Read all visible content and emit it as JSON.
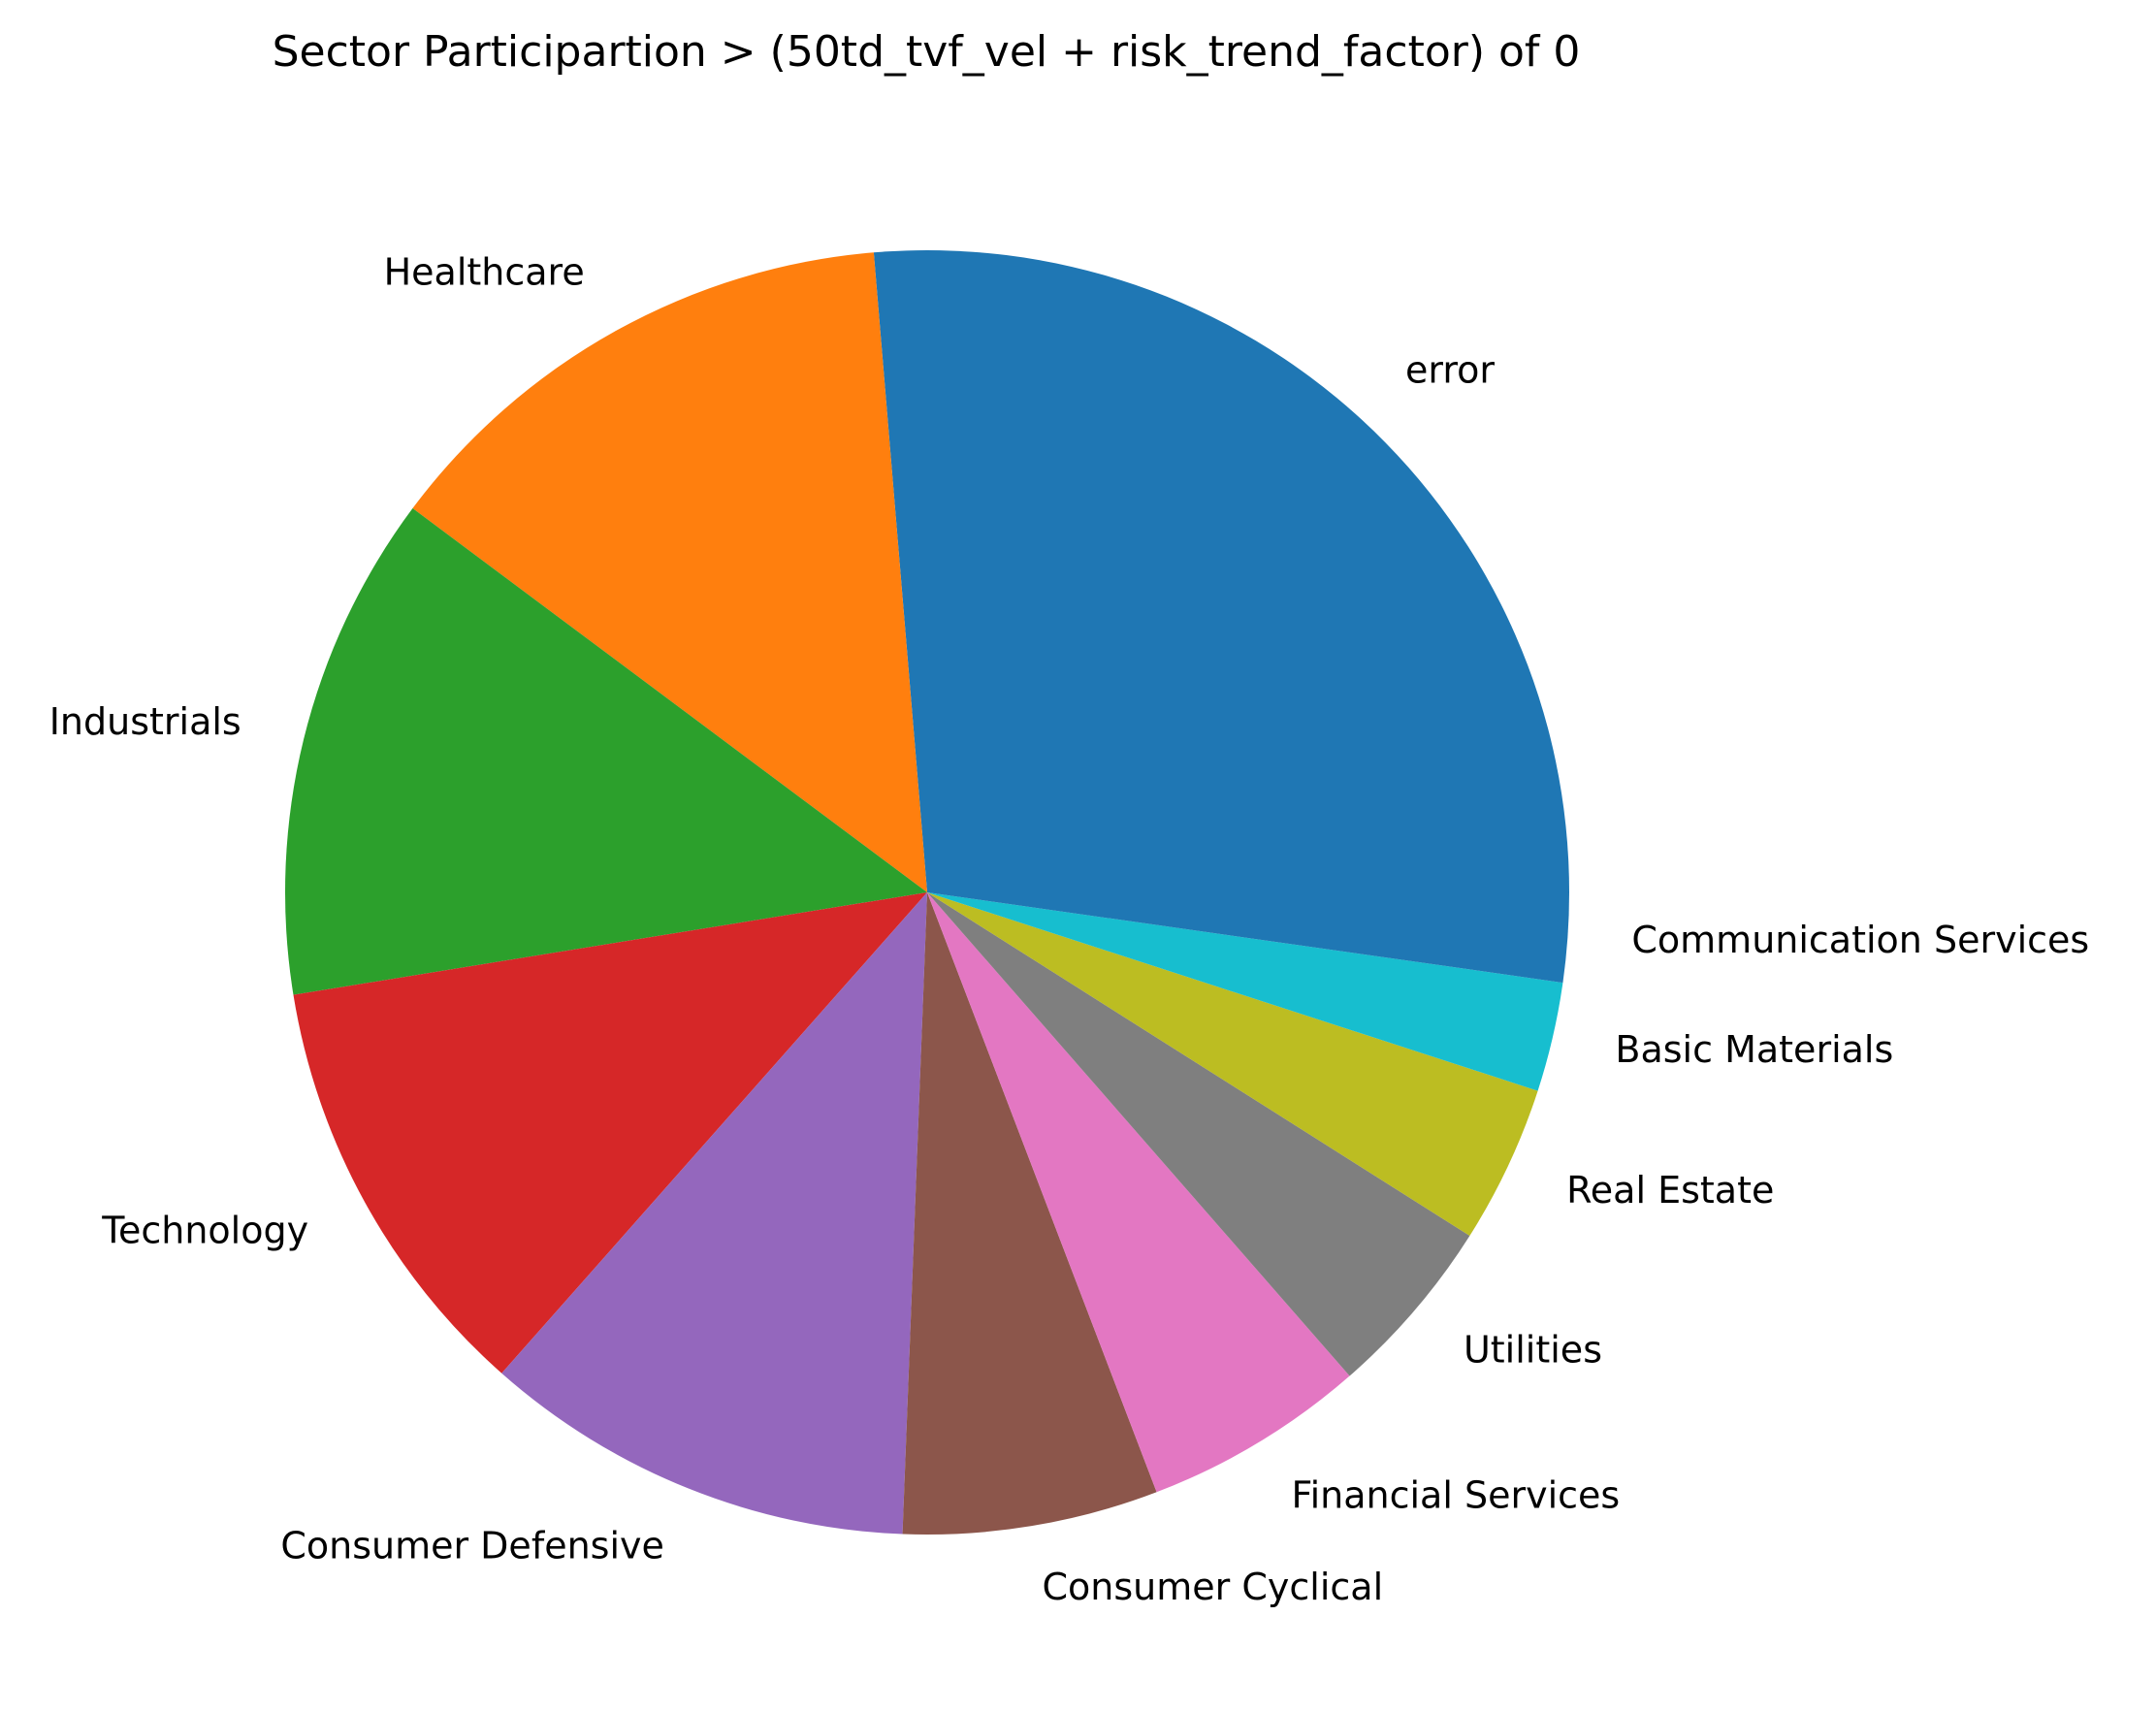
{
  "chart_data": {
    "type": "pie",
    "title": "Sector Participartion > (50td_tvf_vel + risk_trend_factor) of 0",
    "start_angle_deg": 0,
    "direction": "counterclockwise",
    "legend": "none",
    "slices": [
      {
        "label": "error",
        "value": 25.8,
        "color": "#1f77b4"
      },
      {
        "label": "Healthcare",
        "value": 13.2,
        "color": "#ff7f0e"
      },
      {
        "label": "Industrials",
        "value": 12.5,
        "color": "#2ca02c"
      },
      {
        "label": "Technology",
        "value": 10.7,
        "color": "#d62728"
      },
      {
        "label": "Consumer Defensive",
        "value": 10.7,
        "color": "#9467bd"
      },
      {
        "label": "Consumer Cyclical",
        "value": 6.3,
        "color": "#8c564b"
      },
      {
        "label": "Financial Services",
        "value": 5.5,
        "color": "#e377c2"
      },
      {
        "label": "Utilities",
        "value": 4.5,
        "color": "#7f7f7f"
      },
      {
        "label": "Real Estate",
        "value": 3.9,
        "color": "#bcbd22"
      },
      {
        "label": "Basic Materials",
        "value": 2.7,
        "color": "#17becf"
      },
      {
        "label": "Communication Services",
        "value": 2.2,
        "color": "#1f77b4"
      }
    ]
  }
}
